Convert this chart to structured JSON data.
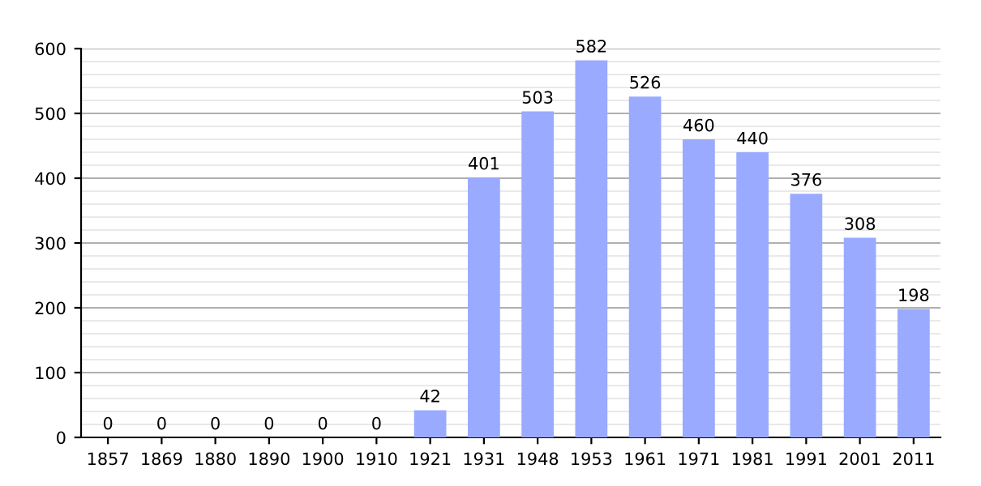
{
  "chart_data": {
    "type": "bar",
    "categories": [
      "1857",
      "1869",
      "1880",
      "1890",
      "1900",
      "1910",
      "1921",
      "1931",
      "1948",
      "1953",
      "1961",
      "1971",
      "1981",
      "1991",
      "2001",
      "2011"
    ],
    "values": [
      0,
      0,
      0,
      0,
      0,
      0,
      42,
      401,
      503,
      582,
      526,
      460,
      440,
      376,
      308,
      198
    ],
    "color": "#99aaff",
    "ylim": [
      0,
      600
    ],
    "yticks": [
      0,
      100,
      200,
      300,
      400,
      500,
      600
    ],
    "grid": "y",
    "data_labels": true
  }
}
